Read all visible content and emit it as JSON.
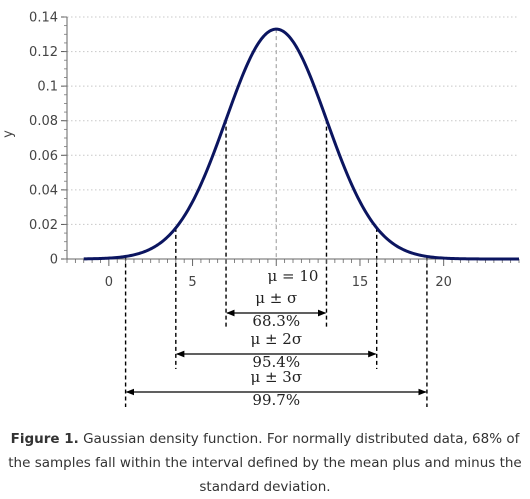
{
  "chart_data": {
    "type": "line",
    "ylabel": "y",
    "xlim": [
      -2.5,
      24.5
    ],
    "ylim": [
      0,
      0.14
    ],
    "x_ticks": [
      0,
      5,
      15,
      20
    ],
    "y_ticks": [
      0,
      0.02,
      0.04,
      0.06,
      0.08,
      0.1,
      0.12,
      0.14
    ],
    "y_tick_labels": [
      "0",
      "0.02",
      "0.04",
      "0.06",
      "0.08",
      "0.1",
      "0.12",
      "0.14"
    ],
    "grid": "horizontal dotted",
    "line_color": "#0b1560",
    "distribution": {
      "mean": 10,
      "sd": 3
    },
    "mean_label": "μ = 10",
    "intervals": [
      {
        "k": 1,
        "range": [
          7,
          13
        ],
        "label": "μ ± σ",
        "percent": "68.3%"
      },
      {
        "k": 2,
        "range": [
          4,
          16
        ],
        "label": "μ ± 2σ",
        "percent": "95.4%"
      },
      {
        "k": 3,
        "range": [
          1,
          19
        ],
        "label": "μ ± 3σ",
        "percent": "99.7%"
      }
    ]
  },
  "caption": {
    "prefix": "Figure 1.",
    "text": " Gaussian density function. For normally distributed data, 68% of the samples fall within the interval defined by the mean plus and minus the standard deviation."
  }
}
